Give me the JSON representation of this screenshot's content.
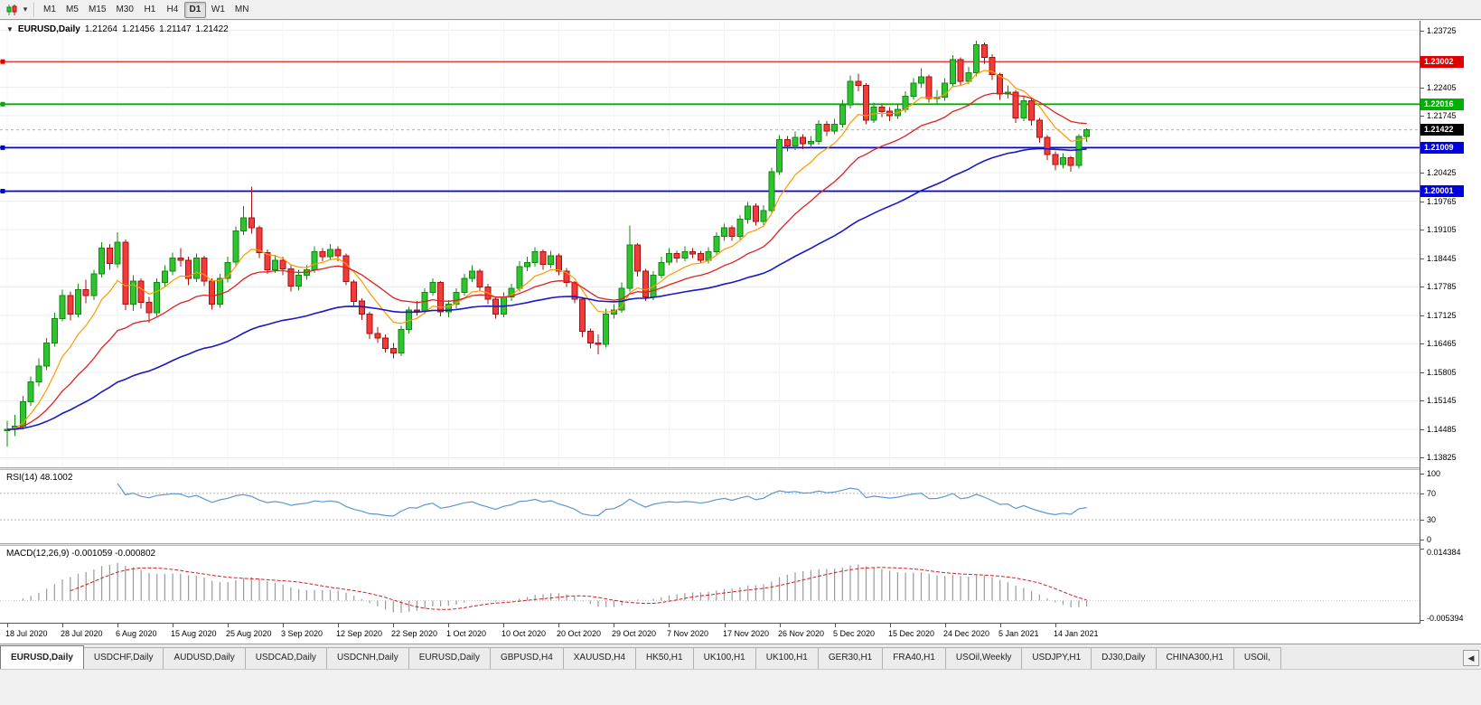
{
  "toolbar": {
    "timeframes": [
      "M1",
      "M5",
      "M15",
      "M30",
      "H1",
      "H4",
      "D1",
      "W1",
      "MN"
    ],
    "active_timeframe": "D1",
    "dropdown_caret": "▾"
  },
  "chart_header": {
    "dropdown_icon": "▼",
    "symbol": "EURUSD,Daily",
    "open": "1.21264",
    "high": "1.21456",
    "low": "1.21147",
    "close": "1.21422"
  },
  "rsi": {
    "label": "RSI(14) 48.1002",
    "period": 14,
    "line_color": "#5e97d0",
    "levels": [
      {
        "v": 100,
        "label": "100",
        "dashed": false
      },
      {
        "v": 70,
        "label": "70",
        "dashed": true
      },
      {
        "v": 30,
        "label": "30",
        "dashed": true
      },
      {
        "v": 0,
        "label": "0",
        "dashed": false
      }
    ]
  },
  "macd": {
    "label": "MACD(12,26,9) -0.001059 -0.000802",
    "fast": 12,
    "slow": 26,
    "signal": 9,
    "hist_color": "#9a9a9a",
    "signal_color": "#d02020",
    "ylim": [
      -0.005394,
      0.014384
    ],
    "axis_ticks": [
      {
        "v": 0.014384,
        "label": "0.014384"
      },
      {
        "v": -0.005394,
        "label": "-0.005394"
      }
    ]
  },
  "tabs": {
    "scroll_left_icon": "◀",
    "items": [
      {
        "label": "EURUSD,Daily",
        "active": true
      },
      {
        "label": "USDCHF,Daily",
        "active": false
      },
      {
        "label": "AUDUSD,Daily",
        "active": false
      },
      {
        "label": "USDCAD,Daily",
        "active": false
      },
      {
        "label": "USDCNH,Daily",
        "active": false
      },
      {
        "label": "EURUSD,Daily",
        "active": false
      },
      {
        "label": "GBPUSD,H4",
        "active": false
      },
      {
        "label": "XAUUSD,H4",
        "active": false
      },
      {
        "label": "HK50,H1",
        "active": false
      },
      {
        "label": "UK100,H1",
        "active": false
      },
      {
        "label": "UK100,H1",
        "active": false
      },
      {
        "label": "GER30,H1",
        "active": false
      },
      {
        "label": "FRA40,H1",
        "active": false
      },
      {
        "label": "USOil,Weekly",
        "active": false
      },
      {
        "label": "USDJPY,H1",
        "active": false
      },
      {
        "label": "DJ30,Daily",
        "active": false
      },
      {
        "label": "CHINA300,H1",
        "active": false
      },
      {
        "label": "USOil,",
        "active": false
      }
    ]
  },
  "chart_data": {
    "type": "candlestick",
    "symbol": "EURUSD",
    "timeframe": "Daily",
    "ylim": [
      1.136,
      1.2395
    ],
    "colors": {
      "up": "#2fc32f",
      "up_border": "#128a12",
      "down": "#f23b3b",
      "down_border": "#aa0f0f",
      "grid": "#ececec",
      "grid_v": "#f5f5f5",
      "bid_line": "#b0b0b0"
    },
    "y_ticks": [
      {
        "v": 1.23725,
        "label": "1.23725"
      },
      {
        "v": 1.23065,
        "label": ""
      },
      {
        "v": 1.22405,
        "label": "1.22405"
      },
      {
        "v": 1.21745,
        "label": "1.21745"
      },
      {
        "v": 1.21085,
        "label": ""
      },
      {
        "v": 1.20425,
        "label": "1.20425"
      },
      {
        "v": 1.19765,
        "label": "1.19765"
      },
      {
        "v": 1.19105,
        "label": "1.19105"
      },
      {
        "v": 1.18445,
        "label": "1.18445"
      },
      {
        "v": 1.17785,
        "label": "1.17785"
      },
      {
        "v": 1.17125,
        "label": "1.17125"
      },
      {
        "v": 1.16465,
        "label": "1.16465"
      },
      {
        "v": 1.15805,
        "label": "1.15805"
      },
      {
        "v": 1.15145,
        "label": "1.15145"
      },
      {
        "v": 1.14485,
        "label": "1.14485"
      },
      {
        "v": 1.13825,
        "label": "1.13825"
      }
    ],
    "hlines": [
      {
        "price": 1.23002,
        "label": "1.23002",
        "color": "#e00000",
        "width": 1.2
      },
      {
        "price": 1.22016,
        "label": "1.22016",
        "color": "#00b000",
        "width": 1.8
      },
      {
        "price": 1.21009,
        "label": "1.21009",
        "color": "#0000e0",
        "width": 1.8
      },
      {
        "price": 1.20001,
        "label": "1.20001",
        "color": "#0000e0",
        "width": 1.8
      }
    ],
    "bid": {
      "price": 1.21422,
      "label": "1.21422",
      "color": "#000000"
    },
    "moving_averages": [
      {
        "period": 8,
        "color": "#ff9a00",
        "width": 1.2
      },
      {
        "period": 20,
        "color": "#e02020",
        "width": 1.3
      },
      {
        "period": 55,
        "color": "#1818c8",
        "width": 1.6
      }
    ],
    "x_labels": [
      "18 Jul 2020",
      "28 Jul 2020",
      "6 Aug 2020",
      "15 Aug 2020",
      "25 Aug 2020",
      "3 Sep 2020",
      "12 Sep 2020",
      "22 Sep 2020",
      "1 Oct 2020",
      "10 Oct 2020",
      "20 Oct 2020",
      "29 Oct 2020",
      "7 Nov 2020",
      "17 Nov 2020",
      "26 Nov 2020",
      "5 Dec 2020",
      "15 Dec 2020",
      "24 Dec 2020",
      "5 Jan 2021",
      "14 Jan 2021"
    ],
    "label_every": 7,
    "candles": [
      [
        1.1445,
        1.1468,
        1.1408,
        1.1448
      ],
      [
        1.1448,
        1.1482,
        1.1432,
        1.1455
      ],
      [
        1.1455,
        1.1525,
        1.1448,
        1.1512
      ],
      [
        1.1512,
        1.1571,
        1.1502,
        1.1558
      ],
      [
        1.1558,
        1.1612,
        1.1548,
        1.1595
      ],
      [
        1.1595,
        1.166,
        1.1585,
        1.1648
      ],
      [
        1.1648,
        1.1718,
        1.164,
        1.1705
      ],
      [
        1.1705,
        1.1772,
        1.1698,
        1.1758
      ],
      [
        1.1758,
        1.1768,
        1.17,
        1.1715
      ],
      [
        1.1715,
        1.1785,
        1.1708,
        1.1772
      ],
      [
        1.1772,
        1.1795,
        1.174,
        1.1758
      ],
      [
        1.1758,
        1.1818,
        1.1748,
        1.1808
      ],
      [
        1.1808,
        1.1882,
        1.18,
        1.1868
      ],
      [
        1.1868,
        1.1878,
        1.1818,
        1.1832
      ],
      [
        1.1832,
        1.1905,
        1.1822,
        1.1882
      ],
      [
        1.1882,
        1.1888,
        1.1725,
        1.1738
      ],
      [
        1.1738,
        1.1805,
        1.1722,
        1.1792
      ],
      [
        1.1792,
        1.1798,
        1.1728,
        1.1742
      ],
      [
        1.1742,
        1.1755,
        1.1695,
        1.1718
      ],
      [
        1.1718,
        1.1798,
        1.171,
        1.1788
      ],
      [
        1.1788,
        1.1828,
        1.1778,
        1.1815
      ],
      [
        1.1815,
        1.1858,
        1.1805,
        1.1845
      ],
      [
        1.1845,
        1.1868,
        1.1825,
        1.184
      ],
      [
        1.184,
        1.1848,
        1.1782,
        1.1798
      ],
      [
        1.1798,
        1.1855,
        1.179,
        1.1845
      ],
      [
        1.1845,
        1.185,
        1.178,
        1.1792
      ],
      [
        1.1792,
        1.1798,
        1.1726,
        1.1738
      ],
      [
        1.1738,
        1.1808,
        1.173,
        1.1798
      ],
      [
        1.1798,
        1.1848,
        1.1788,
        1.1835
      ],
      [
        1.1835,
        1.1918,
        1.1828,
        1.1908
      ],
      [
        1.1908,
        1.1966,
        1.1898,
        1.1938
      ],
      [
        1.1938,
        1.2011,
        1.1902,
        1.1915
      ],
      [
        1.1915,
        1.192,
        1.1845,
        1.1858
      ],
      [
        1.1858,
        1.1865,
        1.1808,
        1.1818
      ],
      [
        1.1818,
        1.1852,
        1.181,
        1.184
      ],
      [
        1.184,
        1.1848,
        1.1805,
        1.182
      ],
      [
        1.182,
        1.1828,
        1.1768,
        1.178
      ],
      [
        1.178,
        1.1818,
        1.177,
        1.1805
      ],
      [
        1.1805,
        1.1828,
        1.1795,
        1.1818
      ],
      [
        1.1818,
        1.1872,
        1.181,
        1.186
      ],
      [
        1.186,
        1.1868,
        1.1838,
        1.1848
      ],
      [
        1.1848,
        1.1878,
        1.184,
        1.1865
      ],
      [
        1.1865,
        1.1872,
        1.1838,
        1.185
      ],
      [
        1.185,
        1.1855,
        1.1782,
        1.179
      ],
      [
        1.179,
        1.1795,
        1.1735,
        1.1745
      ],
      [
        1.1745,
        1.1752,
        1.1702,
        1.1715
      ],
      [
        1.1715,
        1.172,
        1.1658,
        1.167
      ],
      [
        1.167,
        1.1685,
        1.1648,
        1.166
      ],
      [
        1.166,
        1.1668,
        1.1626,
        1.1635
      ],
      [
        1.1635,
        1.1648,
        1.1612,
        1.1625
      ],
      [
        1.1625,
        1.1688,
        1.1618,
        1.168
      ],
      [
        1.168,
        1.1732,
        1.167,
        1.1725
      ],
      [
        1.1725,
        1.1745,
        1.1712,
        1.1722
      ],
      [
        1.1722,
        1.1775,
        1.1715,
        1.1765
      ],
      [
        1.1765,
        1.1798,
        1.1758,
        1.1788
      ],
      [
        1.1788,
        1.1792,
        1.171,
        1.172
      ],
      [
        1.172,
        1.1748,
        1.1708,
        1.1738
      ],
      [
        1.1738,
        1.1775,
        1.1728,
        1.1765
      ],
      [
        1.1765,
        1.1808,
        1.1758,
        1.1798
      ],
      [
        1.1798,
        1.1828,
        1.179,
        1.1815
      ],
      [
        1.1815,
        1.182,
        1.1768,
        1.1778
      ],
      [
        1.1778,
        1.1785,
        1.1738,
        1.175
      ],
      [
        1.175,
        1.1755,
        1.1705,
        1.1715
      ],
      [
        1.1715,
        1.1765,
        1.1708,
        1.1755
      ],
      [
        1.1755,
        1.1785,
        1.1745,
        1.1775
      ],
      [
        1.1775,
        1.1838,
        1.1768,
        1.1825
      ],
      [
        1.1825,
        1.1848,
        1.1815,
        1.1835
      ],
      [
        1.1835,
        1.187,
        1.1825,
        1.186
      ],
      [
        1.186,
        1.1865,
        1.1818,
        1.183
      ],
      [
        1.183,
        1.1862,
        1.1822,
        1.185
      ],
      [
        1.185,
        1.1855,
        1.1805,
        1.1815
      ],
      [
        1.1815,
        1.1822,
        1.1778,
        1.1788
      ],
      [
        1.1788,
        1.1792,
        1.174,
        1.175
      ],
      [
        1.175,
        1.1755,
        1.1662,
        1.1675
      ],
      [
        1.1675,
        1.1682,
        1.1635,
        1.1648
      ],
      [
        1.1648,
        1.1668,
        1.1622,
        1.1645
      ],
      [
        1.1645,
        1.1728,
        1.1638,
        1.1715
      ],
      [
        1.1715,
        1.1738,
        1.1705,
        1.1725
      ],
      [
        1.1725,
        1.1788,
        1.1718,
        1.1775
      ],
      [
        1.1775,
        1.192,
        1.1768,
        1.1875
      ],
      [
        1.1875,
        1.188,
        1.1802,
        1.1815
      ],
      [
        1.1815,
        1.182,
        1.1745,
        1.1755
      ],
      [
        1.1755,
        1.1815,
        1.1748,
        1.1805
      ],
      [
        1.1805,
        1.1848,
        1.1798,
        1.1835
      ],
      [
        1.1835,
        1.1868,
        1.1828,
        1.1855
      ],
      [
        1.1855,
        1.1862,
        1.1835,
        1.1845
      ],
      [
        1.1845,
        1.1872,
        1.1838,
        1.186
      ],
      [
        1.186,
        1.1868,
        1.1845,
        1.1855
      ],
      [
        1.1855,
        1.1862,
        1.1832,
        1.184
      ],
      [
        1.184,
        1.187,
        1.1832,
        1.186
      ],
      [
        1.186,
        1.1905,
        1.1852,
        1.1895
      ],
      [
        1.1895,
        1.1925,
        1.1885,
        1.1915
      ],
      [
        1.1915,
        1.192,
        1.1885,
        1.1895
      ],
      [
        1.1895,
        1.1945,
        1.1888,
        1.1935
      ],
      [
        1.1935,
        1.1975,
        1.1925,
        1.1965
      ],
      [
        1.1965,
        1.1972,
        1.192,
        1.193
      ],
      [
        1.193,
        1.1968,
        1.1922,
        1.1955
      ],
      [
        1.1955,
        1.2055,
        1.1948,
        1.2045
      ],
      [
        1.2045,
        1.213,
        1.2038,
        1.212
      ],
      [
        1.212,
        1.2128,
        1.2092,
        1.2105
      ],
      [
        1.2105,
        1.2138,
        1.2095,
        1.2125
      ],
      [
        1.2125,
        1.2132,
        1.2098,
        1.211
      ],
      [
        1.211,
        1.2128,
        1.21,
        1.2115
      ],
      [
        1.2115,
        1.2165,
        1.2108,
        1.2155
      ],
      [
        1.2155,
        1.2162,
        1.2128,
        1.214
      ],
      [
        1.214,
        1.2168,
        1.2132,
        1.2155
      ],
      [
        1.2155,
        1.2212,
        1.2148,
        1.22
      ],
      [
        1.22,
        1.2268,
        1.2192,
        1.2255
      ],
      [
        1.2255,
        1.2272,
        1.2232,
        1.2245
      ],
      [
        1.2245,
        1.225,
        1.2155,
        1.2165
      ],
      [
        1.2165,
        1.2205,
        1.2158,
        1.2195
      ],
      [
        1.2195,
        1.2202,
        1.2172,
        1.2185
      ],
      [
        1.2185,
        1.2195,
        1.2162,
        1.2175
      ],
      [
        1.2175,
        1.2202,
        1.2168,
        1.219
      ],
      [
        1.219,
        1.2232,
        1.2182,
        1.222
      ],
      [
        1.222,
        1.2262,
        1.2212,
        1.225
      ],
      [
        1.225,
        1.2285,
        1.224,
        1.2265
      ],
      [
        1.2265,
        1.227,
        1.2205,
        1.2215
      ],
      [
        1.2215,
        1.2235,
        1.2202,
        1.2218
      ],
      [
        1.2218,
        1.2262,
        1.221,
        1.225
      ],
      [
        1.225,
        1.2315,
        1.2242,
        1.2305
      ],
      [
        1.2305,
        1.231,
        1.2245,
        1.2255
      ],
      [
        1.2255,
        1.2288,
        1.2248,
        1.2275
      ],
      [
        1.2275,
        1.2349,
        1.2266,
        1.234
      ],
      [
        1.234,
        1.2345,
        1.2295,
        1.231
      ],
      [
        1.231,
        1.2318,
        1.2258,
        1.227
      ],
      [
        1.227,
        1.2275,
        1.2212,
        1.2225
      ],
      [
        1.2225,
        1.2245,
        1.2215,
        1.223
      ],
      [
        1.223,
        1.2235,
        1.2158,
        1.217
      ],
      [
        1.217,
        1.2222,
        1.2162,
        1.221
      ],
      [
        1.221,
        1.2215,
        1.2152,
        1.2165
      ],
      [
        1.2165,
        1.217,
        1.2112,
        1.2125
      ],
      [
        1.2125,
        1.213,
        1.2072,
        1.2085
      ],
      [
        1.2085,
        1.2092,
        1.2048,
        1.2062
      ],
      [
        1.2062,
        1.2088,
        1.2052,
        1.2078
      ],
      [
        1.2078,
        1.2082,
        1.2045,
        1.206
      ],
      [
        1.206,
        1.2132,
        1.2052,
        1.21264
      ],
      [
        1.21264,
        1.21456,
        1.21147,
        1.21422
      ]
    ]
  }
}
